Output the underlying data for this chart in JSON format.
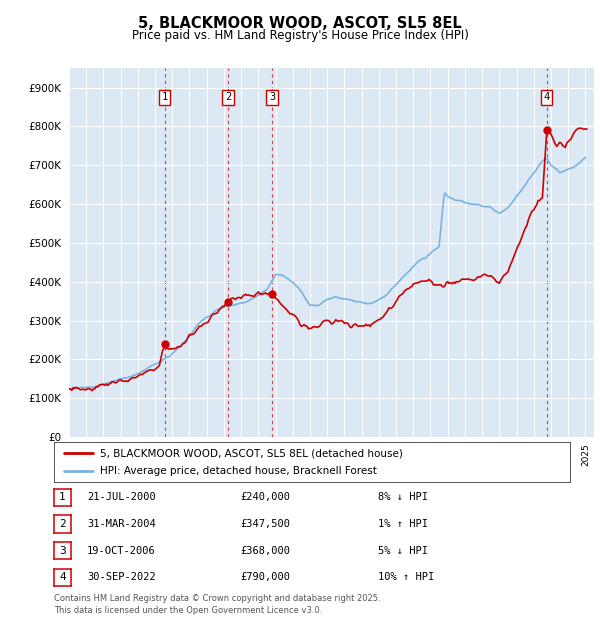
{
  "title": "5, BLACKMOOR WOOD, ASCOT, SL5 8EL",
  "subtitle": "Price paid vs. HM Land Registry's House Price Index (HPI)",
  "bg_color": "#dce9f5",
  "ylim": [
    0,
    950000
  ],
  "yticks": [
    0,
    100000,
    200000,
    300000,
    400000,
    500000,
    600000,
    700000,
    800000,
    900000
  ],
  "xlim_left": 1995.0,
  "xlim_right": 2025.5,
  "sale_year_decimals": [
    2000.554,
    2004.247,
    2006.8,
    2022.747
  ],
  "sale_prices": [
    240000,
    347500,
    368000,
    790000
  ],
  "sale_labels": [
    "1",
    "2",
    "3",
    "4"
  ],
  "legend_entries": [
    "5, BLACKMOOR WOOD, ASCOT, SL5 8EL (detached house)",
    "HPI: Average price, detached house, Bracknell Forest"
  ],
  "table_rows": [
    [
      "1",
      "21-JUL-2000",
      "£240,000",
      "8% ↓ HPI"
    ],
    [
      "2",
      "31-MAR-2004",
      "£347,500",
      "1% ↑ HPI"
    ],
    [
      "3",
      "19-OCT-2006",
      "£368,000",
      "5% ↓ HPI"
    ],
    [
      "4",
      "30-SEP-2022",
      "£790,000",
      "10% ↑ HPI"
    ]
  ],
  "footnote": "Contains HM Land Registry data © Crown copyright and database right 2025.\nThis data is licensed under the Open Government Licence v3.0.",
  "hpi_color": "#7ab3e0",
  "red_color": "#cc0000",
  "box_color": "#cc0000"
}
